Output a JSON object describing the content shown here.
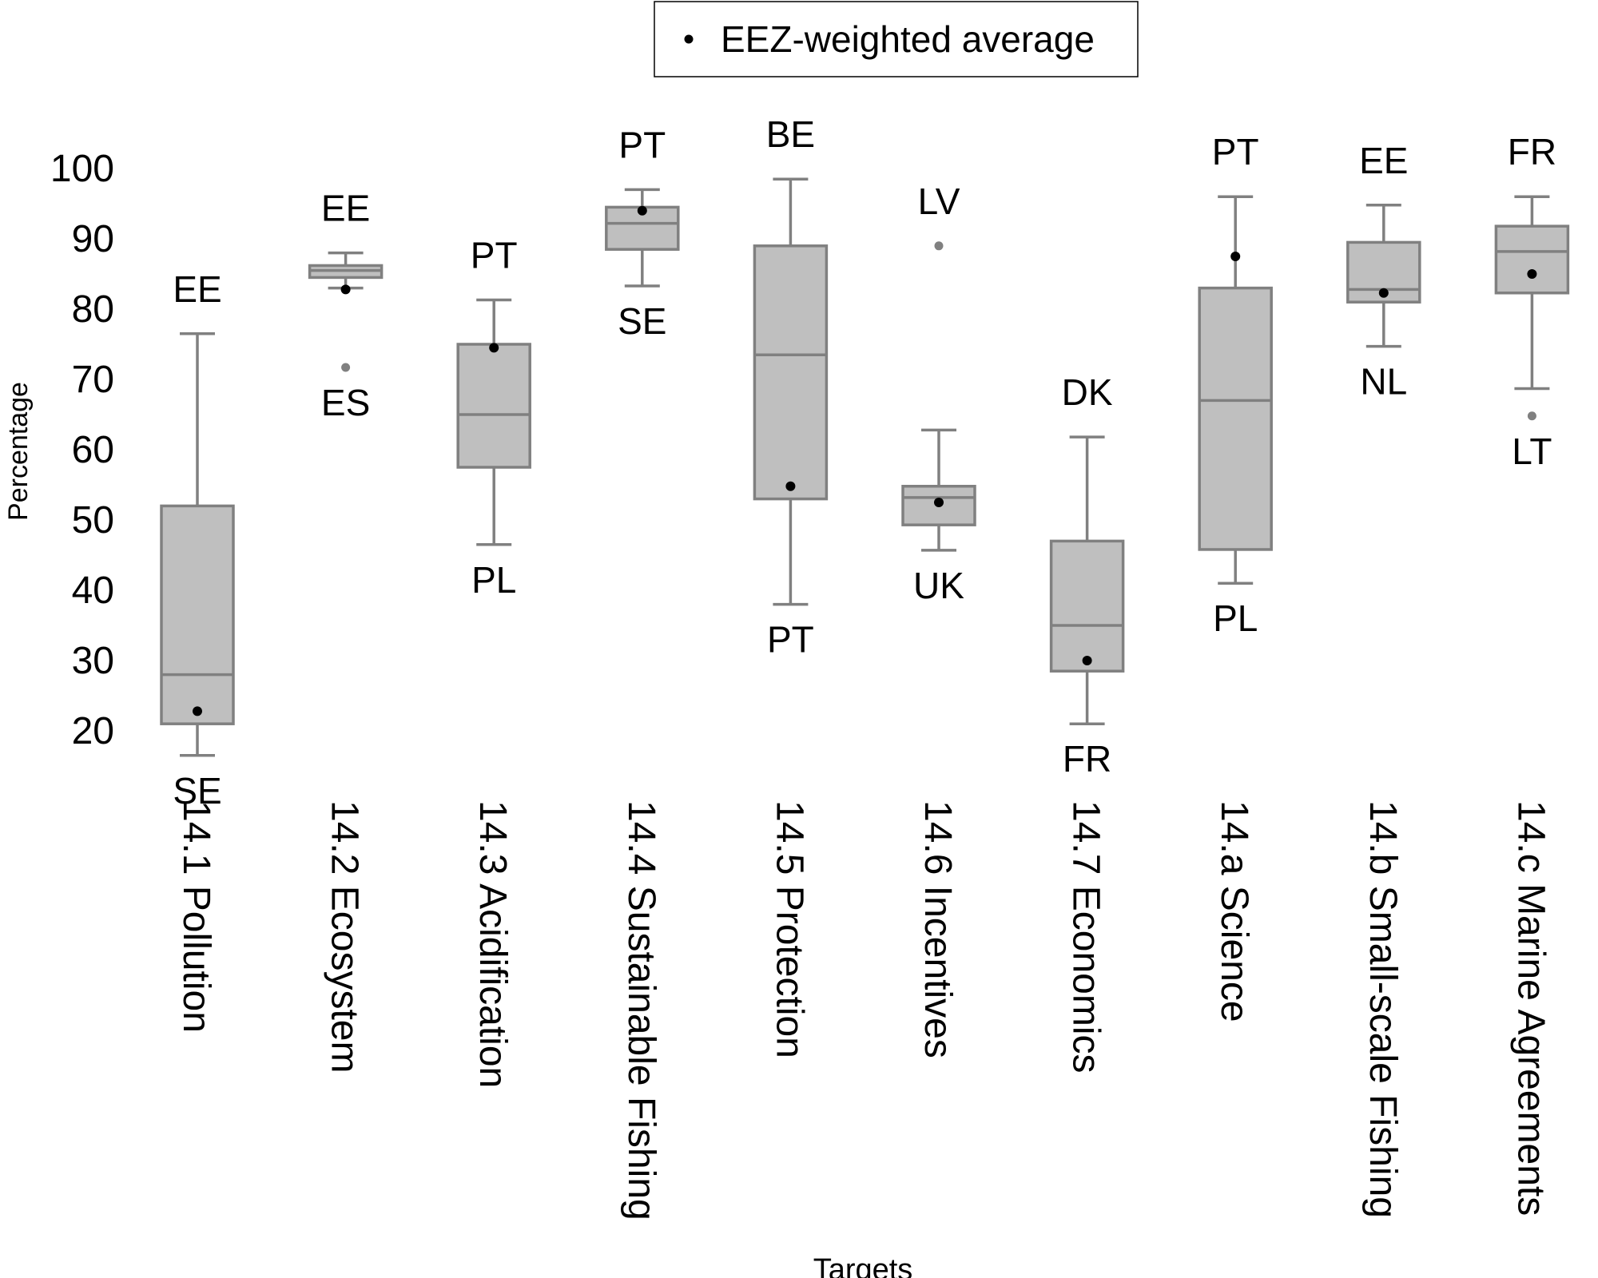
{
  "chart_data": {
    "type": "box",
    "xlabel": "Targets",
    "ylabel": "Percentage",
    "ylim": [
      14,
      106
    ],
    "yticks": [
      20,
      30,
      40,
      50,
      60,
      70,
      80,
      90,
      100
    ],
    "grid": false,
    "legend": {
      "position": "top-center",
      "entries": [
        "EEZ-weighted average"
      ]
    },
    "categories": [
      "14.1 Pollution",
      "14.2 Ecosystem",
      "14.3 Acidification",
      "14.4 Sustainable Fishing",
      "14.5 Protection",
      "14.6 Incentives",
      "14.7 Economics",
      "14.a Science",
      "14.b Small-scale Fishing",
      "14.c Marine Agreements"
    ],
    "boxes": [
      {
        "whisker_low": 16.5,
        "q1": 21,
        "median": 28,
        "q3": 52,
        "whisker_high": 76.5,
        "mean": 22.8,
        "outliers": [],
        "top_label": "EE",
        "bottom_label": "SE"
      },
      {
        "whisker_low": 83,
        "q1": 84.5,
        "median": 85.5,
        "q3": 86.2,
        "whisker_high": 88,
        "mean": 82.8,
        "outliers": [
          71.7
        ],
        "top_label": "EE",
        "bottom_label": "ES"
      },
      {
        "whisker_low": 46.5,
        "q1": 57.5,
        "median": 65,
        "q3": 75,
        "whisker_high": 81.3,
        "mean": 74.5,
        "outliers": [],
        "top_label": "PT",
        "bottom_label": "PL"
      },
      {
        "whisker_low": 83.3,
        "q1": 88.5,
        "median": 92.2,
        "q3": 94.5,
        "whisker_high": 97,
        "mean": 94,
        "outliers": [],
        "top_label": "PT",
        "bottom_label": "SE"
      },
      {
        "whisker_low": 38,
        "q1": 53,
        "median": 73.5,
        "q3": 89,
        "whisker_high": 98.5,
        "mean": 54.8,
        "outliers": [],
        "top_label": "BE",
        "bottom_label": "PT"
      },
      {
        "whisker_low": 45.7,
        "q1": 49.3,
        "median": 53.2,
        "q3": 54.8,
        "whisker_high": 62.8,
        "mean": 52.5,
        "outliers": [
          89
        ],
        "top_label": "LV",
        "bottom_label": "UK"
      },
      {
        "whisker_low": 21,
        "q1": 28.5,
        "median": 35,
        "q3": 47,
        "whisker_high": 61.8,
        "mean": 30,
        "outliers": [],
        "top_label": "DK",
        "bottom_label": "FR"
      },
      {
        "whisker_low": 41,
        "q1": 45.8,
        "median": 67,
        "q3": 83,
        "whisker_high": 96,
        "mean": 87.5,
        "outliers": [],
        "top_label": "PT",
        "bottom_label": "PL"
      },
      {
        "whisker_low": 74.7,
        "q1": 81,
        "median": 82.8,
        "q3": 89.5,
        "whisker_high": 94.8,
        "mean": 82.3,
        "outliers": [],
        "top_label": "EE",
        "bottom_label": "NL"
      },
      {
        "whisker_low": 68.7,
        "q1": 82.3,
        "median": 88.2,
        "q3": 91.8,
        "whisker_high": 96,
        "mean": 85,
        "outliers": [
          64.8
        ],
        "top_label": "FR",
        "bottom_label": "LT"
      }
    ],
    "colors": {
      "box_fill": "#bfbfbf",
      "box_stroke": "#808080",
      "mean_dot": "#000000",
      "outlier": "#808080"
    }
  }
}
